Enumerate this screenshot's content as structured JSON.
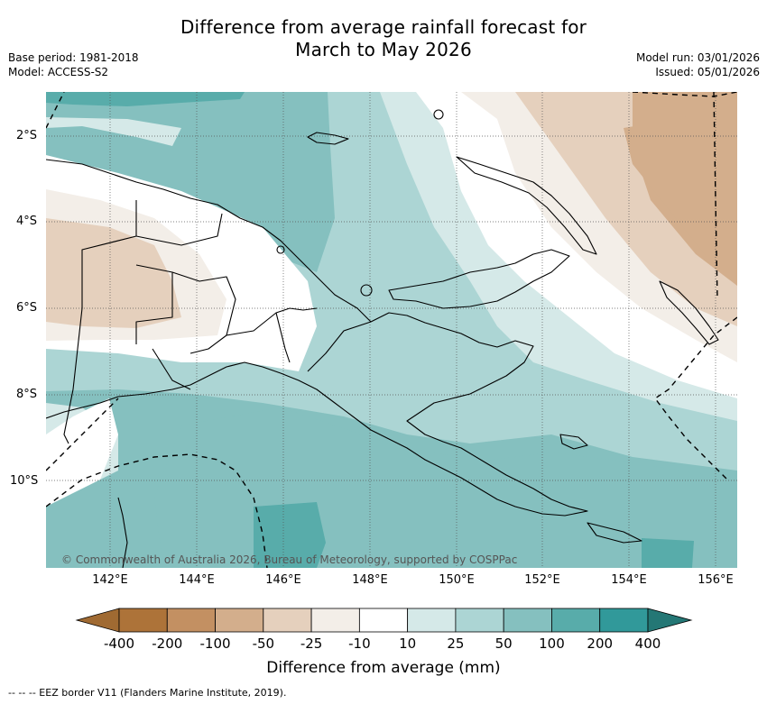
{
  "header": {
    "title_line1": "Difference from average rainfall forecast for",
    "title_line2": "March to May 2026",
    "base_period": "Base period: 1981-2018",
    "model": "Model: ACCESS-S2",
    "model_run": "Model run: 03/01/2026",
    "issued": "Issued: 05/01/2026"
  },
  "map": {
    "lat_labels": [
      "2°S",
      "4°S",
      "6°S",
      "8°S",
      "10°S"
    ],
    "lon_labels": [
      "142°E",
      "144°E",
      "146°E",
      "148°E",
      "150°E",
      "152°E",
      "154°E",
      "156°E"
    ],
    "copyright": "© Commonwealth of Australia 2026, Bureau of Meteorology, supported by COSPPac",
    "palette": {
      "lt_-200": "#ad7339",
      "-200_-100": "#c39062",
      "-100_-50": "#d3ae8c",
      "-50_-25": "#e5d0bd",
      "-25_-10": "#f3eee8",
      "-10_10": "#ffffff",
      "10_25": "#d5e9e8",
      "25_50": "#acd5d4",
      "50_100": "#85c0bf",
      "100_200": "#58acaa",
      "200_400": "#31999a",
      "gt_400": "#247775"
    }
  },
  "legend": {
    "labels": [
      "-400",
      "-200",
      "-100",
      "-50",
      "-25",
      "-10",
      "10",
      "25",
      "50",
      "100",
      "200",
      "400"
    ],
    "colors": [
      "#ad7339",
      "#c39062",
      "#d3ae8c",
      "#e5d0bd",
      "#f3eee8",
      "#ffffff",
      "#d5e9e8",
      "#acd5d4",
      "#85c0bf",
      "#58acaa",
      "#31999a"
    ],
    "low_color": "#a06a32",
    "high_color": "#247775",
    "title": "Difference from average (mm)"
  },
  "footer": {
    "eez_note": "--  --  -- EEZ border V11 (Flanders Marine Institute, 2019)."
  }
}
